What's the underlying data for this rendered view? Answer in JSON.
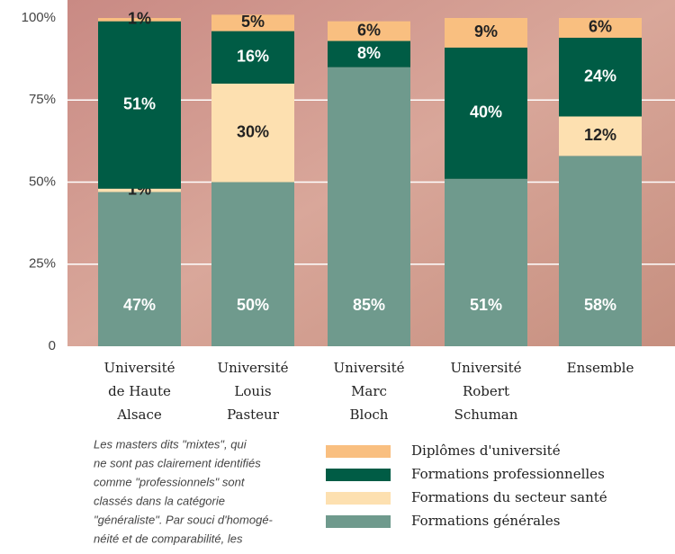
{
  "chart_data": {
    "type": "stacked-bar",
    "categories": [
      [
        "Université",
        "de Haute",
        "Alsace"
      ],
      [
        "Université",
        "Louis",
        "Pasteur"
      ],
      [
        "Université",
        "Marc",
        "Bloch"
      ],
      [
        "Université",
        "Robert",
        "Schuman"
      ],
      [
        "Ensemble"
      ]
    ],
    "series": [
      {
        "name": "Formations générales",
        "color": "#6f9a8d",
        "values": [
          47,
          50,
          85,
          51,
          58
        ],
        "value_labels": [
          "47%",
          "50%",
          "85%",
          "51%",
          "58%"
        ]
      },
      {
        "name": "Formations du secteur santé",
        "color": "#fde0b0",
        "values": [
          1,
          30,
          0,
          0,
          12
        ],
        "value_labels": [
          "1%",
          "30%",
          null,
          null,
          "12%"
        ]
      },
      {
        "name": "Formations professionnelles",
        "color": "#005c45",
        "values": [
          51,
          16,
          8,
          40,
          24
        ],
        "value_labels": [
          "51%",
          "16%",
          "8%",
          "40%",
          "24%"
        ]
      },
      {
        "name": "Diplômes d'université",
        "color": "#f9bf80",
        "values": [
          1,
          5,
          6,
          9,
          6
        ],
        "value_labels": [
          "1%",
          "5%",
          "6%",
          "9%",
          "6%"
        ]
      }
    ],
    "legend_order": [
      3,
      2,
      1,
      0
    ],
    "ylim": [
      0,
      100
    ],
    "yticks": [
      0,
      {
        "value": 25,
        "label": "25%"
      },
      {
        "value": 50,
        "label": "50%"
      },
      {
        "value": 75,
        "label": "75%"
      },
      {
        "value": 100,
        "label": "100%"
      }
    ],
    "grid": true,
    "note": [
      "Les masters dits \"mixtes\", qui",
      "ne sont pas clairement identifiés",
      "comme \"professionnels\" sont",
      "classés dans la catégorie",
      "\"généraliste\". Par souci d'homogé-",
      "néité et de comparabilité, les"
    ]
  }
}
